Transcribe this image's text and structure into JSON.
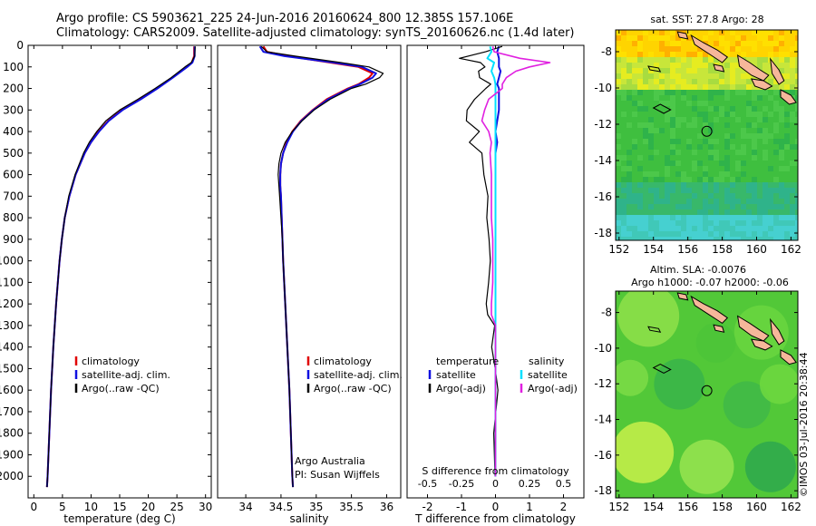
{
  "header": {
    "line1": "Argo profile: CS 5903621_225 24-Jun-2016 20160624_800 12.385S 157.106E",
    "line2": "Climatology: CARS2009. Satellite-adjusted climatology: synTS_20160626.nc (1.4d later)"
  },
  "colors": {
    "climatology": "#e00000",
    "satellite": "#1010e0",
    "argo": "#000000",
    "sat_salinity": "#00e0ff",
    "argo_salinity": "#e020e0"
  },
  "chart_data": [
    {
      "id": "temperature",
      "type": "line",
      "xlabel": "temperature (deg C)",
      "ylabel": "",
      "xlim": [
        -1,
        31
      ],
      "ylim": [
        2100,
        0
      ],
      "xticks": [
        0,
        5,
        10,
        15,
        20,
        25,
        30
      ],
      "yticks": [
        0,
        100,
        200,
        300,
        400,
        500,
        600,
        700,
        800,
        900,
        1000,
        1100,
        1200,
        1300,
        1400,
        1500,
        1600,
        1700,
        1800,
        1900,
        2000
      ],
      "legend": [
        "climatology",
        "satellite-adj. clim.",
        "Argo(..raw -QC)"
      ],
      "depth": [
        5,
        50,
        80,
        100,
        150,
        200,
        250,
        300,
        350,
        400,
        450,
        500,
        600,
        700,
        800,
        900,
        1000,
        1200,
        1400,
        1600,
        1800,
        2000,
        2050
      ],
      "series": [
        {
          "name": "climatology",
          "values": [
            28.0,
            28.0,
            27.6,
            26.7,
            24.2,
            21.5,
            18.6,
            15.4,
            13.0,
            11.3,
            10.0,
            8.9,
            7.3,
            6.2,
            5.4,
            4.9,
            4.5,
            3.9,
            3.4,
            3.0,
            2.7,
            2.4,
            2.3
          ]
        },
        {
          "name": "satellite-adj. clim.",
          "values": [
            28.1,
            28.1,
            27.7,
            26.8,
            24.3,
            21.6,
            18.7,
            15.5,
            13.1,
            11.4,
            10.0,
            8.9,
            7.3,
            6.2,
            5.4,
            4.9,
            4.5,
            3.9,
            3.4,
            3.0,
            2.7,
            2.4,
            2.3
          ]
        },
        {
          "name": "Argo(..raw -QC)",
          "values": [
            28.2,
            28.1,
            27.5,
            26.4,
            24.0,
            21.2,
            18.2,
            15.0,
            12.6,
            11.0,
            9.7,
            8.7,
            7.2,
            6.1,
            5.4,
            4.9,
            4.5,
            3.9,
            3.4,
            3.0,
            2.7,
            2.4,
            2.3
          ]
        }
      ]
    },
    {
      "id": "salinity",
      "type": "line",
      "xlabel": "salinity",
      "xlim": [
        33.6,
        36.2
      ],
      "ylim": [
        2100,
        0
      ],
      "xticks": [
        34,
        34.5,
        35,
        35.5,
        36
      ],
      "legend": [
        "climatology",
        "satellite-adj. clim.",
        "Argo(..raw -QC)"
      ],
      "annotation": [
        "Argo Australia",
        "PI: Susan Wijffels"
      ],
      "depth": [
        5,
        30,
        50,
        80,
        100,
        130,
        150,
        180,
        200,
        250,
        300,
        350,
        400,
        450,
        500,
        550,
        600,
        650,
        700,
        800,
        900,
        1000,
        1200,
        1400,
        1600,
        1800,
        2000,
        2050
      ],
      "series": [
        {
          "name": "climatology",
          "values": [
            34.25,
            34.3,
            34.6,
            35.2,
            35.6,
            35.8,
            35.75,
            35.6,
            35.45,
            35.15,
            34.95,
            34.78,
            34.66,
            34.58,
            34.53,
            34.5,
            34.49,
            34.49,
            34.5,
            34.51,
            34.52,
            34.53,
            34.56,
            34.59,
            34.62,
            34.64,
            34.66,
            34.67
          ]
        },
        {
          "name": "satellite-adj. clim.",
          "values": [
            34.2,
            34.25,
            34.55,
            35.25,
            35.65,
            35.85,
            35.8,
            35.62,
            35.47,
            35.17,
            34.96,
            34.79,
            34.67,
            34.59,
            34.53,
            34.5,
            34.49,
            34.49,
            34.5,
            34.51,
            34.52,
            34.53,
            34.56,
            34.59,
            34.62,
            34.64,
            34.66,
            34.67
          ]
        },
        {
          "name": "Argo(..raw -QC)",
          "values": [
            34.22,
            34.3,
            34.7,
            35.35,
            35.75,
            35.95,
            35.9,
            35.7,
            35.5,
            35.2,
            34.97,
            34.8,
            34.66,
            34.56,
            34.5,
            34.47,
            34.46,
            34.47,
            34.48,
            34.5,
            34.52,
            34.53,
            34.56,
            34.59,
            34.62,
            34.64,
            34.66,
            34.67
          ]
        }
      ]
    },
    {
      "id": "difference",
      "type": "line",
      "xlabel": "T difference from climatology",
      "xlabel_top": "S difference from climatology",
      "xlim": [
        -2.6,
        2.6
      ],
      "ylim": [
        2100,
        0
      ],
      "xticks": [
        -2,
        -1,
        0,
        1,
        2
      ],
      "s_ticks": [
        -0.5,
        -0.25,
        0,
        0.25,
        0.5
      ],
      "s_tick_labels": [
        "-0.5",
        "-0.25",
        "0",
        "0.25",
        "0.5"
      ],
      "legend_left_title": "temperature",
      "legend_right_title": "salinity",
      "legend_left": [
        "satellite",
        "Argo(-adj)"
      ],
      "legend_right": [
        "satellite",
        "Argo(-adj)"
      ],
      "depth": [
        5,
        30,
        60,
        80,
        100,
        120,
        150,
        180,
        200,
        250,
        300,
        350,
        400,
        450,
        500,
        600,
        700,
        800,
        900,
        1000,
        1100,
        1200,
        1250,
        1300,
        1400,
        1500,
        1600,
        1800,
        2000
      ],
      "series": [
        {
          "name": "temperature satellite",
          "values": [
            0.1,
            0.05,
            0.1,
            0.1,
            0.1,
            0.15,
            0.1,
            0.05,
            0.1,
            0.1,
            0.1,
            0.05,
            0.0,
            0.05,
            0.0,
            0.0,
            0.0,
            0.0,
            0.0,
            0.0,
            0.0,
            0.0,
            0.0,
            0.0,
            0.0,
            0.0,
            0.0,
            0.0,
            0.0
          ]
        },
        {
          "name": "temperature Argo(-adj)",
          "values": [
            0.2,
            -0.3,
            -1.0,
            -0.4,
            -0.3,
            -0.5,
            -0.4,
            -0.2,
            -0.3,
            -0.6,
            -0.8,
            -0.9,
            -0.5,
            -0.7,
            -0.4,
            -0.3,
            -0.25,
            -0.2,
            -0.2,
            -0.15,
            -0.15,
            -0.2,
            -0.3,
            -0.1,
            -0.05,
            0.0,
            0.0,
            0.0,
            0.0
          ]
        },
        {
          "name": "salinity satellite",
          "values": [
            -0.04,
            -0.03,
            -0.06,
            -0.01,
            -0.02,
            -0.03,
            -0.01,
            0.0,
            0.0,
            0.0,
            0.0,
            0.0,
            0.0,
            0.0,
            0.0,
            0.0,
            0.0,
            0.0,
            0.0,
            0.0,
            0.0,
            0.0,
            0.0,
            0.0,
            0.0,
            0.0,
            0.0,
            0.0,
            0.0
          ]
        },
        {
          "name": "salinity Argo(-adj)",
          "values": [
            -0.02,
            -0.01,
            0.18,
            0.4,
            0.25,
            0.15,
            0.08,
            0.05,
            0.05,
            -0.05,
            -0.08,
            -0.1,
            -0.05,
            -0.03,
            -0.04,
            -0.03,
            -0.03,
            -0.03,
            -0.02,
            -0.02,
            -0.02,
            -0.03,
            -0.03,
            0.0,
            0.0,
            0.0,
            0.0,
            0.0,
            0.0
          ]
        }
      ]
    },
    {
      "id": "sst_map",
      "type": "heatmap",
      "title": "sat. SST: 27.8  Argo: 28",
      "xticks": [
        152,
        154,
        156,
        158,
        160,
        162
      ],
      "yticks": [
        -8,
        -10,
        -12,
        -14,
        -16,
        -18
      ],
      "xlim": [
        151.8,
        162.4
      ],
      "ylim": [
        -18.4,
        -6.8
      ],
      "argo_position": {
        "lon": 157.106,
        "lat": -12.385
      }
    },
    {
      "id": "sla_map",
      "type": "heatmap",
      "title_line1": "Altim. SLA: -0.0076",
      "title_line2": "Argo h1000: -0.07  h2000: -0.06",
      "xticks": [
        152,
        154,
        156,
        158,
        160,
        162
      ],
      "yticks": [
        -8,
        -10,
        -12,
        -14,
        -16,
        -18
      ],
      "xlim": [
        151.8,
        162.4
      ],
      "ylim": [
        -18.4,
        -6.8
      ],
      "argo_position": {
        "lon": 157.106,
        "lat": -12.385
      }
    }
  ],
  "stamp": "©IMOS 03-Jul-2016 20:38:44"
}
